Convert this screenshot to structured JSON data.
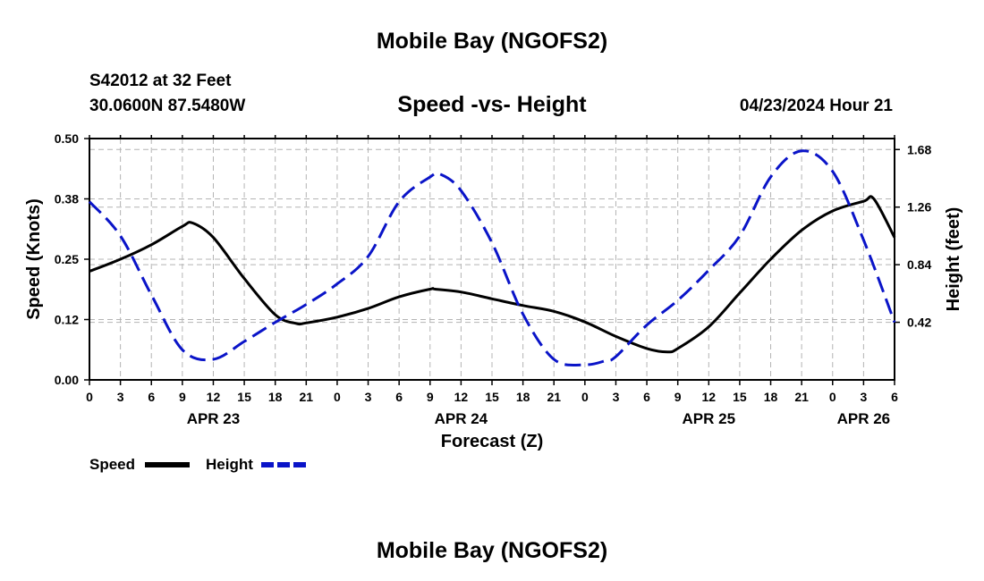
{
  "header": {
    "title": "Mobile Bay (NGOFS2)",
    "station": "S42012 at 32 Feet",
    "coords": "30.0600N  87.5480W",
    "subtitle": "Speed -vs- Height",
    "datetime": "04/23/2024 Hour 21"
  },
  "footer": {
    "title": "Mobile Bay (NGOFS2)"
  },
  "legend": {
    "speed_label": "Speed",
    "height_label": "Height"
  },
  "colors": {
    "speed": "#000000",
    "height": "#0a14c8",
    "grid": "#b4b4b4"
  },
  "chart_data": {
    "type": "line",
    "title": "Speed -vs- Height",
    "xlabel": "Forecast (Z)",
    "ylabel": "Speed (Knots)",
    "y2label": "Height (feet)",
    "xlim": [
      0,
      78
    ],
    "ylim": [
      0,
      0.5
    ],
    "y2lim": [
      0,
      1.76
    ],
    "x_ticks": [
      0,
      3,
      6,
      9,
      12,
      15,
      18,
      21,
      24,
      27,
      30,
      33,
      36,
      39,
      42,
      45,
      48,
      51,
      54,
      57,
      60,
      63,
      66,
      69,
      72,
      75,
      78
    ],
    "x_tick_labels": [
      "0",
      "3",
      "6",
      "9",
      "12",
      "15",
      "18",
      "21",
      "0",
      "3",
      "6",
      "9",
      "12",
      "15",
      "18",
      "21",
      "0",
      "3",
      "6",
      "9",
      "12",
      "15",
      "18",
      "21",
      "0",
      "3",
      "6"
    ],
    "y_ticks": [
      0,
      0.125,
      0.25,
      0.375,
      0.5
    ],
    "y_tick_labels": [
      "0.00",
      "0.12",
      "0.25",
      "0.38",
      "0.50"
    ],
    "y2_ticks": [
      0.42,
      0.84,
      1.26,
      1.68
    ],
    "y2_tick_labels": [
      "0.42",
      "0.84",
      "1.26",
      "1.68"
    ],
    "date_labels": [
      {
        "x": 12,
        "label": "APR 23"
      },
      {
        "x": 36,
        "label": "APR 24"
      },
      {
        "x": 60,
        "label": "APR 25"
      },
      {
        "x": 75,
        "label": "APR 26"
      }
    ],
    "series": [
      {
        "name": "Speed",
        "axis": "left",
        "x": [
          0,
          3,
          6,
          9,
          10,
          12,
          15,
          18,
          20,
          21,
          24,
          27,
          30,
          33,
          33.5,
          36,
          39,
          42,
          45,
          48,
          51,
          54,
          56,
          57,
          60,
          63,
          66,
          69,
          72,
          75,
          76,
          78
        ],
        "values": [
          0.225,
          0.25,
          0.28,
          0.318,
          0.325,
          0.295,
          0.21,
          0.135,
          0.117,
          0.118,
          0.13,
          0.148,
          0.172,
          0.188,
          0.188,
          0.182,
          0.168,
          0.154,
          0.142,
          0.12,
          0.09,
          0.065,
          0.058,
          0.065,
          0.11,
          0.18,
          0.25,
          0.31,
          0.35,
          0.37,
          0.375,
          0.295
        ]
      },
      {
        "name": "Height",
        "axis": "right",
        "x": [
          0,
          3,
          6,
          9,
          12,
          15,
          18,
          21,
          24,
          27,
          30,
          33,
          34,
          36,
          39,
          42,
          45,
          48,
          50,
          51,
          54,
          57,
          60,
          63,
          66,
          69,
          72,
          75,
          78
        ],
        "values": [
          1.3,
          1.05,
          0.62,
          0.22,
          0.15,
          0.28,
          0.42,
          0.55,
          0.7,
          0.9,
          1.3,
          1.48,
          1.5,
          1.38,
          1.0,
          0.48,
          0.15,
          0.11,
          0.14,
          0.17,
          0.4,
          0.58,
          0.8,
          1.05,
          1.48,
          1.67,
          1.52,
          1.02,
          0.42
        ]
      }
    ]
  }
}
